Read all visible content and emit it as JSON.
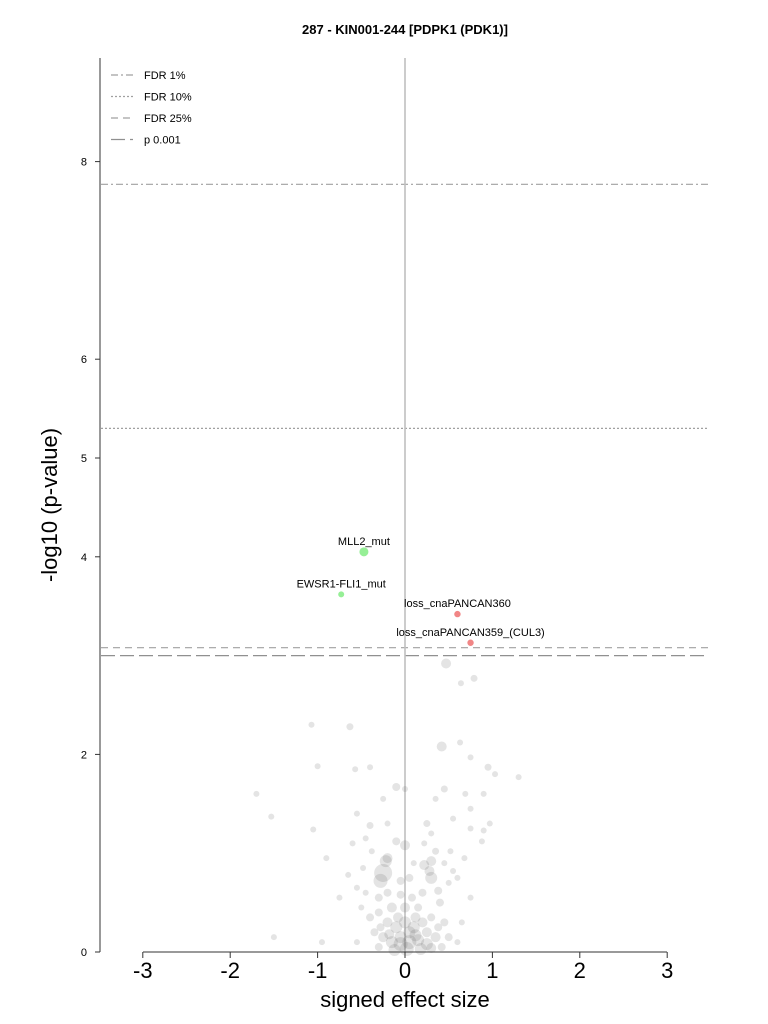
{
  "chart_data": {
    "type": "scatter",
    "title": "287 - KIN001-244 [PDPK1 (PDK1)]",
    "xlabel": "signed effect size",
    "ylabel": "-log10 (p-value)",
    "xlim": [
      -3.5,
      3.5
    ],
    "ylim": [
      0,
      9.05
    ],
    "x_ticks": [
      "-3",
      "-2",
      "-1",
      "0",
      "1",
      "2",
      "3"
    ],
    "y_ticks": [
      "0",
      "2",
      "4",
      "5",
      "6",
      "8"
    ],
    "grid": false,
    "legend_position": "top-left",
    "thresholds": [
      {
        "name": "FDR 1%",
        "y": 7.77,
        "style": "dashdot",
        "color": "#a0a0a0"
      },
      {
        "name": "FDR 10%",
        "y": 5.3,
        "style": "dotted",
        "color": "#a0a0a0"
      },
      {
        "name": "FDR 25%",
        "y": 3.08,
        "style": "dashed",
        "color": "#a0a0a0"
      },
      {
        "name": "p 0.001",
        "y": 3.0,
        "style": "longdash",
        "color": "#909090"
      }
    ],
    "highlighted_points": [
      {
        "label": "MLL2_mut",
        "x": -0.47,
        "y": 4.05,
        "color": "#90ee90",
        "size": 4.5
      },
      {
        "label": "EWSR1-FLI1_mut",
        "x": -0.73,
        "y": 3.62,
        "color": "#90ee90",
        "size": 3
      },
      {
        "label": "loss_cnaPANCAN360",
        "x": 0.6,
        "y": 3.42,
        "color": "#f08080",
        "size": 3.2
      },
      {
        "label": "loss_cnaPANCAN359_(CUL3)",
        "x": 0.75,
        "y": 3.13,
        "color": "#f08080",
        "size": 3.2
      }
    ],
    "background_points": [
      [
        0.47,
        2.92,
        5
      ],
      [
        0.64,
        2.72,
        3
      ],
      [
        0.79,
        2.77,
        3.5
      ],
      [
        -0.63,
        2.28,
        3.5
      ],
      [
        -1.07,
        2.3,
        3
      ],
      [
        0.42,
        2.08,
        5
      ],
      [
        0.63,
        2.12,
        3
      ],
      [
        0.75,
        1.97,
        3
      ],
      [
        0.95,
        1.87,
        3.5
      ],
      [
        1.3,
        1.77,
        3
      ],
      [
        1.03,
        1.8,
        3
      ],
      [
        0.69,
        1.6,
        3
      ],
      [
        0.45,
        1.65,
        3.5
      ],
      [
        0.9,
        1.6,
        3
      ],
      [
        -0.57,
        1.85,
        3
      ],
      [
        -0.4,
        1.87,
        3
      ],
      [
        -1.0,
        1.88,
        3
      ],
      [
        -1.7,
        1.6,
        3
      ],
      [
        -1.53,
        1.37,
        3
      ],
      [
        -1.05,
        1.24,
        3
      ],
      [
        -1.5,
        0.15,
        3
      ],
      [
        -0.95,
        0.1,
        3
      ],
      [
        -0.1,
        1.67,
        4
      ],
      [
        0.0,
        1.65,
        3
      ],
      [
        0.35,
        1.55,
        3
      ],
      [
        0.75,
        1.45,
        3
      ],
      [
        0.97,
        1.3,
        3
      ],
      [
        0.9,
        1.23,
        3
      ],
      [
        -0.55,
        1.4,
        3
      ],
      [
        -0.25,
        1.55,
        3
      ],
      [
        -0.4,
        1.28,
        3.5
      ],
      [
        -0.2,
        1.3,
        3
      ],
      [
        0.25,
        1.3,
        3.5
      ],
      [
        0.3,
        1.2,
        3
      ],
      [
        0.55,
        1.35,
        3
      ],
      [
        0.75,
        1.25,
        3
      ],
      [
        -0.6,
        1.1,
        3
      ],
      [
        -0.9,
        0.95,
        3
      ],
      [
        -0.45,
        1.15,
        3
      ],
      [
        -0.1,
        1.12,
        4
      ],
      [
        0.0,
        1.08,
        5
      ],
      [
        -0.22,
        0.92,
        6
      ],
      [
        -0.25,
        0.8,
        9
      ],
      [
        -0.2,
        0.95,
        5
      ],
      [
        -0.28,
        0.72,
        7
      ],
      [
        0.22,
        0.88,
        5
      ],
      [
        0.3,
        0.92,
        5
      ],
      [
        0.3,
        0.75,
        6
      ],
      [
        0.28,
        0.82,
        5
      ],
      [
        -0.05,
        0.72,
        4
      ],
      [
        0.05,
        0.75,
        4
      ],
      [
        0.35,
        1.02,
        3.5
      ],
      [
        0.45,
        0.9,
        3
      ],
      [
        0.55,
        0.82,
        3
      ],
      [
        0.6,
        0.75,
        3
      ],
      [
        -0.65,
        0.78,
        3
      ],
      [
        -0.75,
        0.55,
        3
      ],
      [
        -0.55,
        0.65,
        3
      ],
      [
        0.52,
        1.02,
        3
      ],
      [
        0.75,
        0.55,
        3
      ],
      [
        -0.3,
        0.55,
        4
      ],
      [
        0.4,
        0.5,
        4
      ],
      [
        -0.4,
        0.35,
        4
      ],
      [
        -0.35,
        0.2,
        4
      ],
      [
        -0.25,
        0.15,
        5
      ],
      [
        -0.15,
        0.1,
        6
      ],
      [
        -0.05,
        0.08,
        7
      ],
      [
        0.05,
        0.1,
        7
      ],
      [
        0.15,
        0.12,
        6
      ],
      [
        0.25,
        0.08,
        6
      ],
      [
        0.35,
        0.15,
        5
      ],
      [
        -0.2,
        0.3,
        5
      ],
      [
        -0.1,
        0.25,
        6
      ],
      [
        0.0,
        0.3,
        6
      ],
      [
        0.1,
        0.25,
        6
      ],
      [
        0.2,
        0.3,
        5
      ],
      [
        0.3,
        0.35,
        4
      ],
      [
        -0.15,
        0.45,
        5
      ],
      [
        0.0,
        0.45,
        5
      ],
      [
        0.15,
        0.45,
        4
      ],
      [
        -0.05,
        0.58,
        4
      ],
      [
        0.08,
        0.55,
        4
      ],
      [
        -0.3,
        0.4,
        4
      ],
      [
        0.45,
        0.3,
        4
      ],
      [
        0.5,
        0.15,
        4
      ],
      [
        -0.5,
        0.45,
        3
      ],
      [
        -0.55,
        0.1,
        3
      ],
      [
        0.6,
        0.1,
        3
      ],
      [
        0.65,
        0.3,
        3
      ],
      [
        -0.12,
        0.02,
        6
      ],
      [
        0.02,
        0.03,
        7
      ],
      [
        0.18,
        0.03,
        6
      ],
      [
        0.3,
        0.04,
        5
      ],
      [
        -0.3,
        0.05,
        4
      ],
      [
        0.42,
        0.05,
        4
      ],
      [
        -0.45,
        0.6,
        3
      ],
      [
        0.2,
        0.6,
        4
      ],
      [
        -0.2,
        0.6,
        4
      ],
      [
        0.12,
        0.35,
        5
      ],
      [
        -0.08,
        0.35,
        5
      ],
      [
        0.25,
        0.2,
        5
      ],
      [
        -0.28,
        0.25,
        4
      ],
      [
        0.38,
        0.25,
        4
      ],
      [
        0.05,
        0.2,
        6
      ],
      [
        -0.05,
        0.15,
        6
      ],
      [
        0.12,
        0.17,
        6
      ],
      [
        -0.18,
        0.18,
        5
      ],
      [
        0.22,
        1.1,
        3
      ],
      [
        0.5,
        0.7,
        3
      ],
      [
        -0.38,
        1.02,
        3
      ],
      [
        0.68,
        0.95,
        3
      ],
      [
        0.88,
        1.12,
        3
      ],
      [
        -0.48,
        0.85,
        3
      ],
      [
        0.1,
        0.9,
        3
      ],
      [
        0.38,
        0.62,
        4
      ]
    ]
  }
}
